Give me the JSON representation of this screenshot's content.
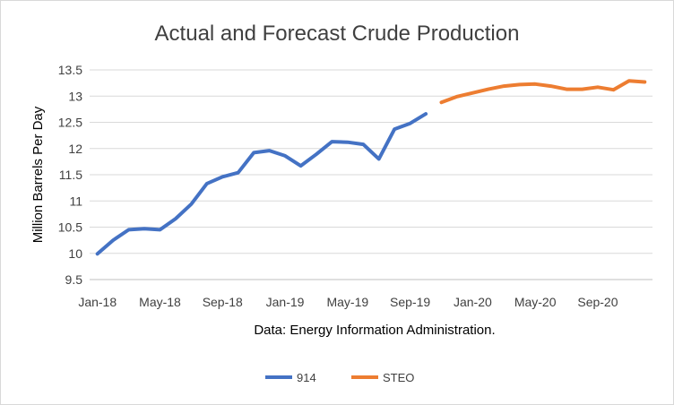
{
  "chart_data": {
    "type": "line",
    "title": "Actual and Forecast Crude Production",
    "ylabel": "Million Barrels Per Day",
    "xlabel": "Data: Energy Information Administration.",
    "ylim": [
      9.5,
      13.5
    ],
    "y_ticks": [
      "9.5",
      "10",
      "10.5",
      "11",
      "11.5",
      "12",
      "12.5",
      "13",
      "13.5"
    ],
    "x_ticks": [
      "Jan-18",
      "May-18",
      "Sep-18",
      "Jan-19",
      "May-19",
      "Sep-19",
      "Jan-20",
      "May-20",
      "Sep-20"
    ],
    "grid": true,
    "legend_position": "bottom",
    "series": [
      {
        "name": "914",
        "color": "#4472C4",
        "x": [
          "Jan-18",
          "Feb-18",
          "Mar-18",
          "Apr-18",
          "May-18",
          "Jun-18",
          "Jul-18",
          "Aug-18",
          "Sep-18",
          "Oct-18",
          "Nov-18",
          "Dec-18",
          "Jan-19",
          "Feb-19",
          "Mar-19",
          "Apr-19",
          "May-19",
          "Jun-19",
          "Jul-19",
          "Aug-19",
          "Sep-19",
          "Oct-19"
        ],
        "values": [
          9.99,
          10.25,
          10.45,
          10.47,
          10.45,
          10.66,
          10.94,
          11.33,
          11.46,
          11.54,
          11.92,
          11.96,
          11.86,
          11.67,
          11.89,
          12.13,
          12.12,
          12.08,
          11.8,
          12.37,
          12.48,
          12.66
        ]
      },
      {
        "name": "STEO",
        "color": "#ED7D31",
        "x": [
          "Nov-19",
          "Dec-19",
          "Jan-20",
          "Feb-20",
          "Mar-20",
          "Apr-20",
          "May-20",
          "Jun-20",
          "Jul-20",
          "Aug-20",
          "Sep-20",
          "Oct-20",
          "Nov-20",
          "Dec-20"
        ],
        "values": [
          12.88,
          12.99,
          13.06,
          13.13,
          13.19,
          13.22,
          13.23,
          13.19,
          13.13,
          13.13,
          13.17,
          13.12,
          13.29,
          13.27
        ]
      }
    ]
  }
}
